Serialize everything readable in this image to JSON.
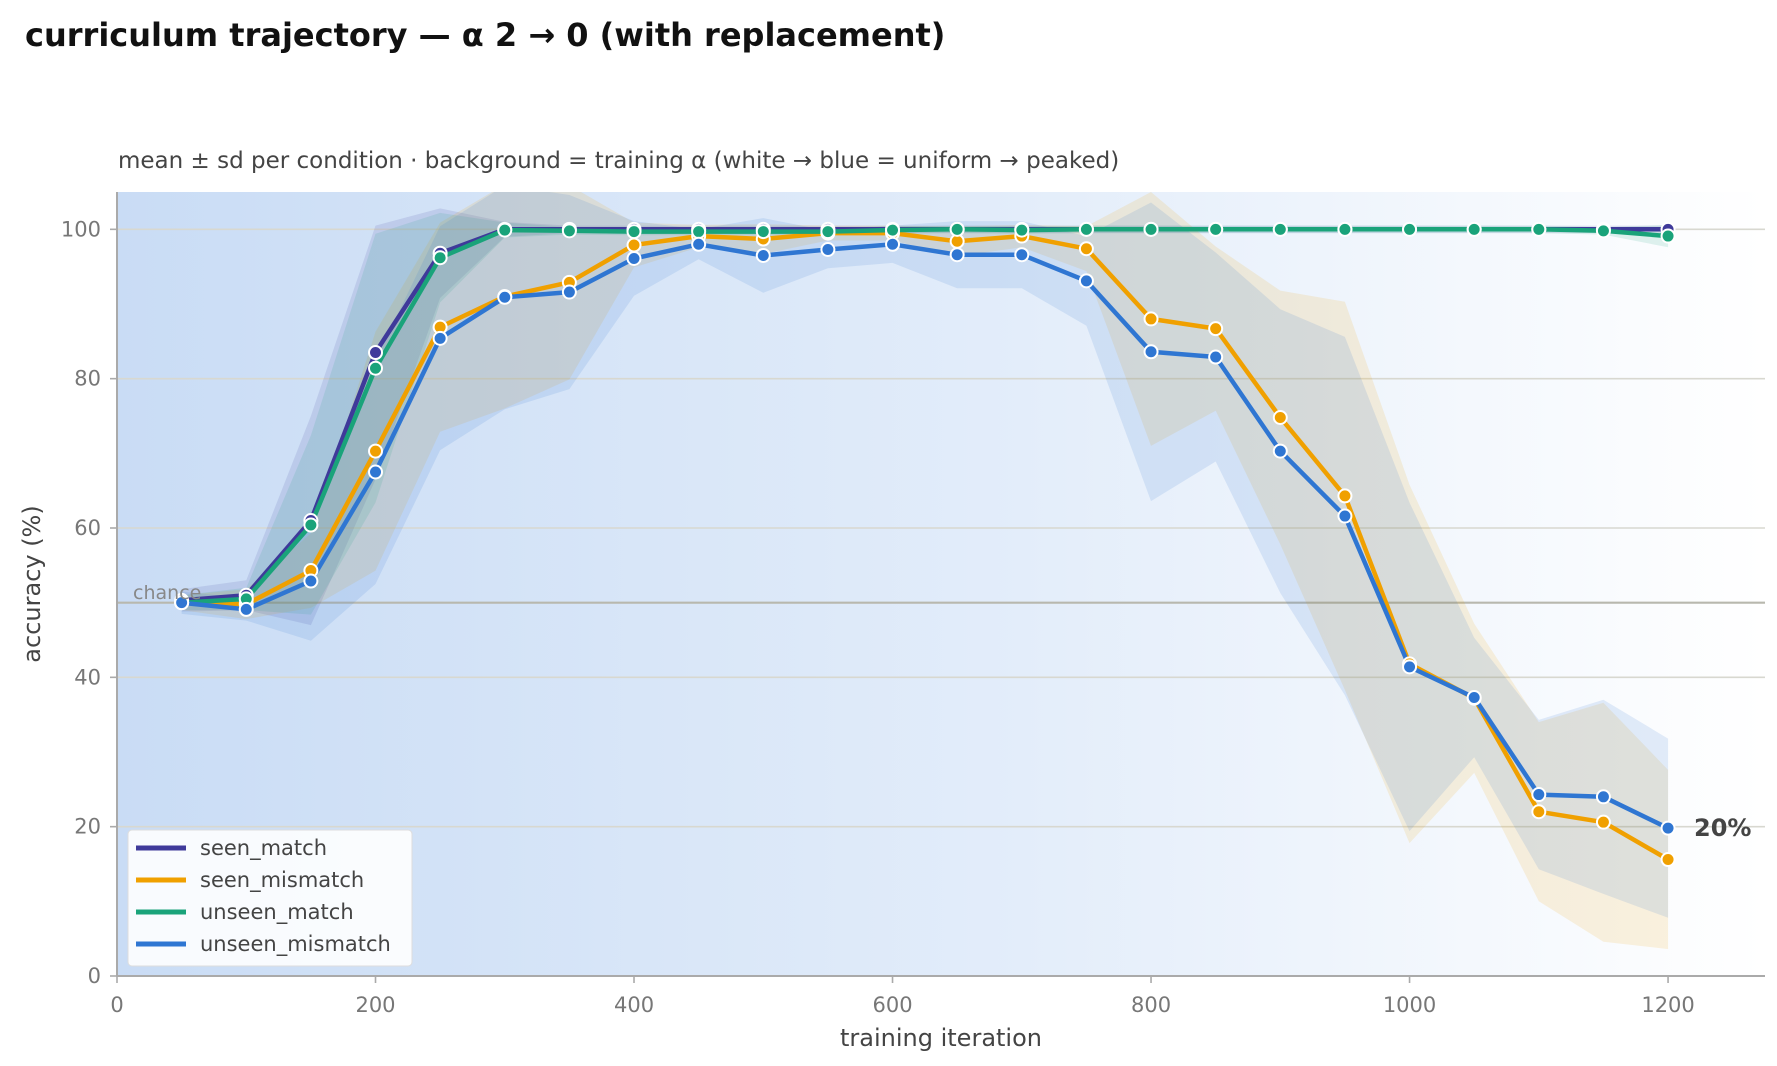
{
  "chart_data": {
    "type": "line",
    "title": "curriculum trajectory — α 2 → 0 (with replacement)",
    "subtitle": "mean ± sd per condition · background = training α (white → blue = uniform → peaked)",
    "xlabel": "training iteration",
    "ylabel": "accuracy (%)",
    "xlim": [
      0,
      1275
    ],
    "ylim": [
      0,
      105
    ],
    "xticks": [
      0,
      200,
      400,
      600,
      800,
      1000,
      1200
    ],
    "yticks": [
      0,
      20,
      40,
      60,
      80,
      100
    ],
    "grid": "horizontal",
    "legend_position": "lower-left",
    "chance_level": 50,
    "chance_label": "chance",
    "end_annotation": "20%",
    "end_annotation_value": 20,
    "background": {
      "description_color_low": "#ffffff",
      "description_color_high": "#c9dcf5",
      "alpha_start": 2,
      "alpha_end": 0
    },
    "x": [
      50,
      100,
      150,
      200,
      250,
      300,
      350,
      400,
      450,
      500,
      550,
      600,
      650,
      700,
      750,
      800,
      850,
      900,
      950,
      1000,
      1050,
      1100,
      1150,
      1200
    ],
    "series": [
      {
        "name": "seen_match",
        "color": "#3f3a9a",
        "values": [
          50.3,
          51.0,
          61.0,
          83.5,
          96.8,
          100,
          100,
          100,
          100,
          100,
          100,
          100,
          100,
          100,
          100,
          100,
          100,
          100,
          100,
          100,
          100,
          100,
          100,
          100
        ],
        "sd": [
          1.5,
          2.0,
          14,
          17,
          6,
          1,
          0.5,
          0.5,
          0.5,
          0.5,
          0.5,
          0.5,
          0.5,
          0.5,
          0.5,
          0.5,
          0.5,
          0.5,
          0.5,
          0.5,
          0.5,
          0.5,
          0.5,
          0.5
        ]
      },
      {
        "name": "seen_mismatch",
        "color": "#f0a000",
        "values": [
          50.0,
          49.8,
          54.3,
          70.3,
          86.9,
          91.0,
          92.9,
          97.9,
          99.1,
          98.7,
          99.5,
          99.5,
          98.4,
          99.1,
          97.4,
          88.0,
          86.7,
          74.8,
          64.3,
          41.8,
          37.2,
          22.0,
          20.6,
          15.6
        ],
        "sd": [
          1.0,
          2.0,
          5,
          16,
          14,
          15,
          13,
          3,
          1.5,
          2,
          1,
          1,
          2,
          1.5,
          3,
          17,
          11,
          17,
          26,
          24,
          10,
          12,
          16,
          12
        ]
      },
      {
        "name": "unseen_match",
        "color": "#1aa37a",
        "values": [
          50.0,
          50.5,
          60.4,
          81.4,
          96.2,
          99.9,
          99.8,
          99.7,
          99.7,
          99.7,
          99.7,
          99.9,
          100,
          99.9,
          100,
          100,
          100,
          100,
          100,
          100,
          100,
          100,
          99.8,
          99.1
        ],
        "sd": [
          1.0,
          1.5,
          12,
          18,
          6,
          1,
          0.5,
          0.5,
          0.5,
          0.5,
          0.5,
          0.5,
          0.5,
          0.5,
          0.5,
          0.5,
          0.5,
          0.5,
          0.5,
          0.5,
          0.5,
          0.5,
          0.5,
          1.5
        ]
      },
      {
        "name": "unseen_mismatch",
        "color": "#2f76d2",
        "values": [
          50.0,
          49.1,
          52.9,
          67.5,
          85.4,
          90.9,
          91.6,
          96.1,
          98.0,
          96.5,
          97.3,
          98.0,
          96.6,
          96.6,
          93.1,
          83.6,
          82.9,
          70.3,
          61.6,
          41.4,
          37.3,
          24.3,
          24.0,
          19.8
        ],
        "sd": [
          1.5,
          1.5,
          8,
          15,
          15,
          15,
          13,
          5,
          2,
          5,
          2.5,
          2.5,
          4.5,
          4.5,
          6,
          20,
          14,
          19,
          24,
          22,
          8,
          10,
          13,
          12
        ]
      }
    ]
  }
}
